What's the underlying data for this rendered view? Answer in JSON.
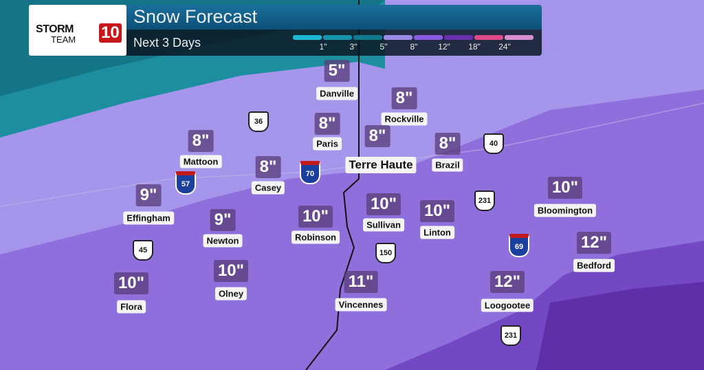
{
  "header": {
    "title": "Snow Forecast",
    "subtitle": "Next 3 Days",
    "logo_text": "STORM TEAM 10"
  },
  "legend": {
    "colors": [
      "#1cb8d4",
      "#1594aa",
      "#117a8e",
      "#9b8ae8",
      "#8a5ae0",
      "#6a30b0",
      "#e04a8a",
      "#d890d0"
    ],
    "ticks": [
      "1\"",
      "3\"",
      "5\"",
      "8\"",
      "12\"",
      "18\"",
      "24\""
    ]
  },
  "cities": [
    {
      "name": "Danville",
      "amount": "5\""
    },
    {
      "name": "Rockville",
      "amount": "8\""
    },
    {
      "name": "Paris",
      "amount": "8\""
    },
    {
      "name": "Terre Haute",
      "amount": "8\""
    },
    {
      "name": "Brazil",
      "amount": "8\""
    },
    {
      "name": "Mattoon",
      "amount": "8\""
    },
    {
      "name": "Casey",
      "amount": "8\""
    },
    {
      "name": "Effingham",
      "amount": "9\""
    },
    {
      "name": "Newton",
      "amount": "9\""
    },
    {
      "name": "Robinson",
      "amount": "10\""
    },
    {
      "name": "Sullivan",
      "amount": "10\""
    },
    {
      "name": "Linton",
      "amount": "10\""
    },
    {
      "name": "Bloomington",
      "amount": "10\""
    },
    {
      "name": "Bedford",
      "amount": "12\""
    },
    {
      "name": "Olney",
      "amount": "10\""
    },
    {
      "name": "Flora",
      "amount": "10\""
    },
    {
      "name": "Vincennes",
      "amount": "11\""
    },
    {
      "name": "Loogootee",
      "amount": "12\""
    }
  ],
  "highways": [
    {
      "type": "us",
      "num": "36"
    },
    {
      "type": "int",
      "num": "70"
    },
    {
      "type": "int",
      "num": "57"
    },
    {
      "type": "us",
      "num": "40"
    },
    {
      "type": "us",
      "num": "231"
    },
    {
      "type": "us",
      "num": "150"
    },
    {
      "type": "us",
      "num": "45"
    },
    {
      "type": "int",
      "num": "69"
    },
    {
      "type": "us",
      "num": "231"
    }
  ]
}
